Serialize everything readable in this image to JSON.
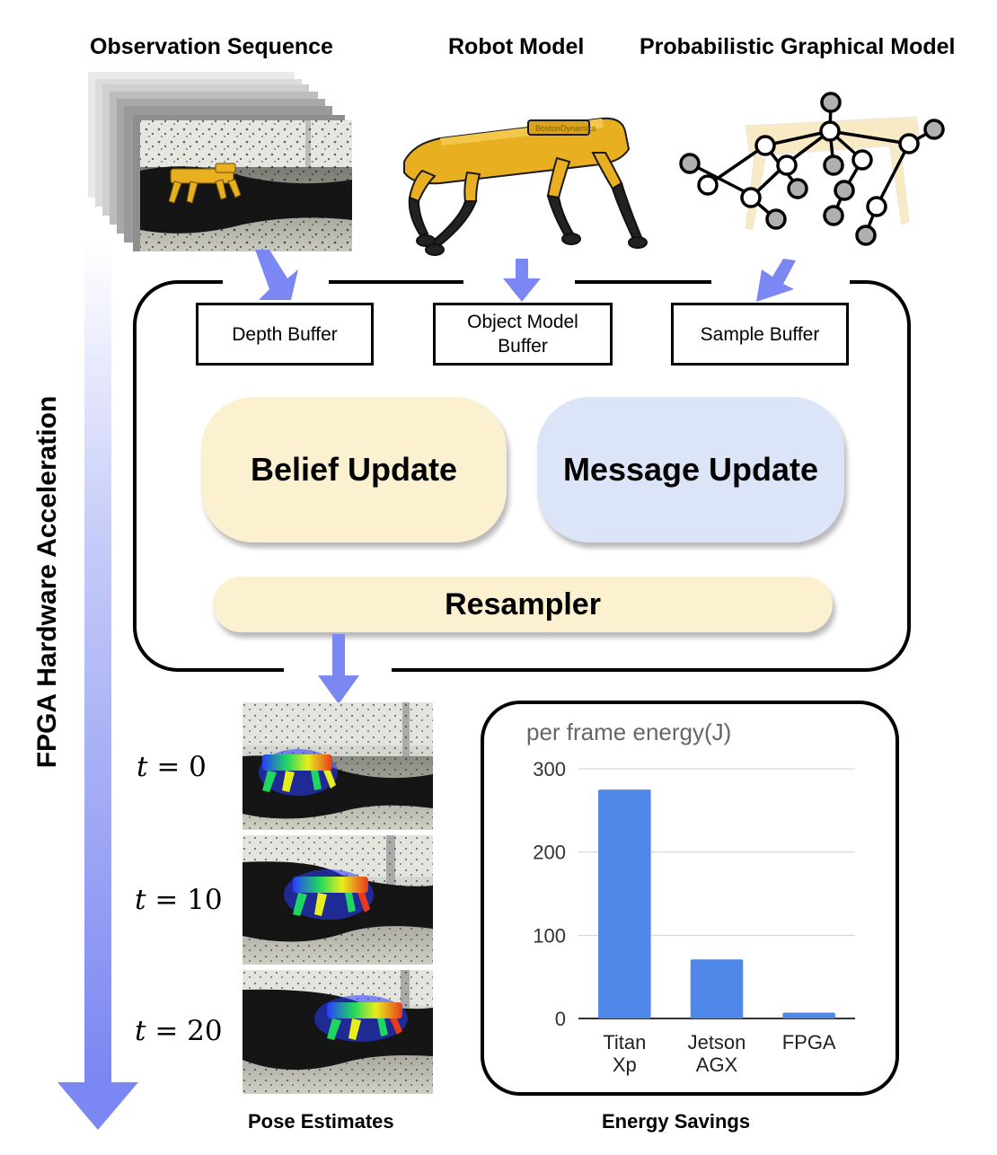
{
  "headers": {
    "observation": "Observation Sequence",
    "robot_model": "Robot Model",
    "pgm": "Probabilistic Graphical Model"
  },
  "side_label": "FPGA Hardware Acceleration",
  "buffers": {
    "depth": "Depth Buffer",
    "object_line1": "Object Model",
    "object_line2": "Buffer",
    "sample": "Sample Buffer"
  },
  "units": {
    "belief": "Belief Update",
    "message": "Message Update",
    "resampler": "Resampler"
  },
  "pose": {
    "caption": "Pose Estimates",
    "frames": [
      {
        "var": "t",
        "eq": " = ",
        "num": "0"
      },
      {
        "var": "t",
        "eq": " = ",
        "num": "10"
      },
      {
        "var": "t",
        "eq": " = ",
        "num": "20"
      }
    ]
  },
  "energy_caption": "Energy Savings",
  "robot_brand": "BostonDynamics",
  "colors": {
    "arrow": "#7b87f2",
    "belief_fill": "#fbf0cf",
    "message_fill": "#dbe5f7",
    "resampler_fill": "#fbf0cf",
    "bar": "#4f88e8",
    "robot_yellow": "#e8b020"
  },
  "chart_data": {
    "type": "bar",
    "title": "per frame energy(J)",
    "categories": [
      [
        "Titan",
        "Xp"
      ],
      [
        "Jetson",
        "AGX"
      ],
      [
        "FPGA"
      ]
    ],
    "values": [
      275,
      71,
      7
    ],
    "yticks": [
      0,
      100,
      200,
      300
    ],
    "ylim": [
      0,
      300
    ],
    "grid": true
  }
}
